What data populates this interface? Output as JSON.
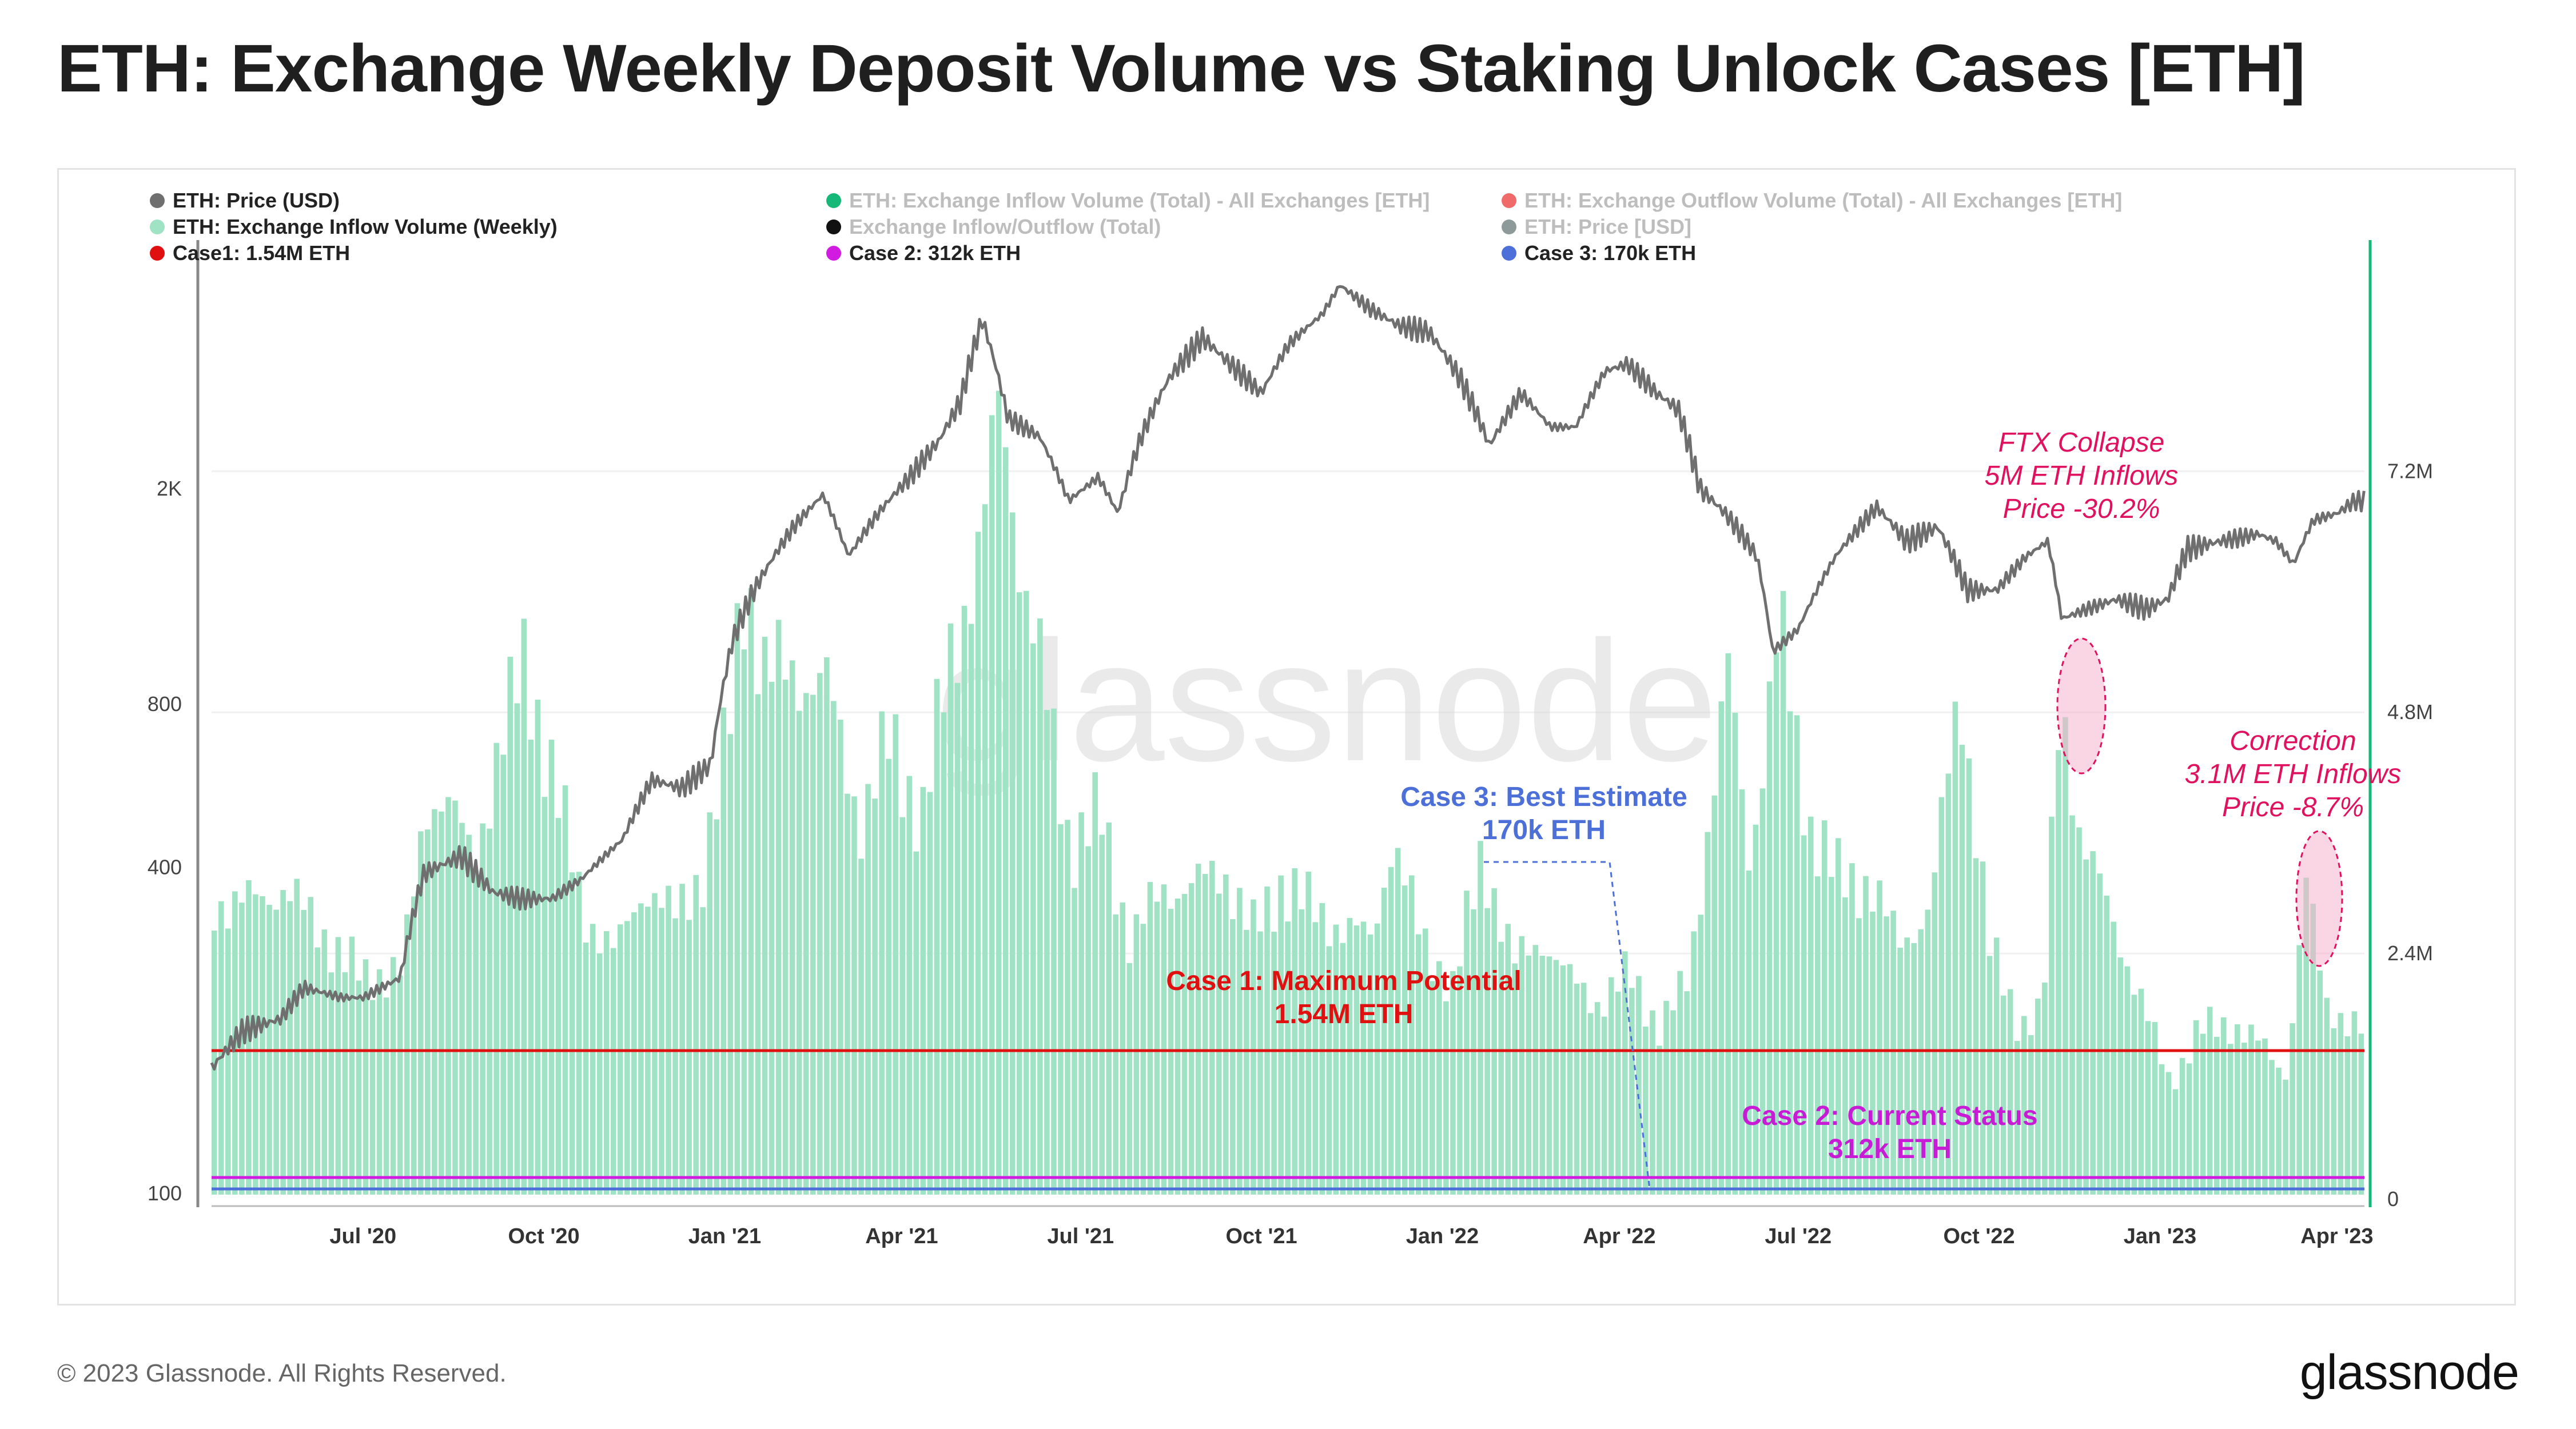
{
  "title": "ETH: Exchange Weekly Deposit Volume vs Staking Unlock Cases [ETH]",
  "footer": {
    "copyright": "© 2023 Glassnode. All Rights Reserved.",
    "logo": "glassnode"
  },
  "watermark": "glassnode",
  "legend": [
    {
      "label": "ETH: Price (USD)",
      "color": "#6f6f6f",
      "active": true
    },
    {
      "label": "ETH: Exchange Inflow Volume (Total) - All Exchanges [ETH]",
      "color": "#16b877",
      "active": false
    },
    {
      "label": "ETH: Exchange Outflow Volume (Total) - All Exchanges [ETH]",
      "color": "#f06a6a",
      "active": false
    },
    {
      "label": "ETH: Exchange Inflow Volume (Weekly)",
      "color": "#9fe2c4",
      "active": true
    },
    {
      "label": "Exchange Inflow/Outflow (Total)",
      "color": "#111111",
      "active": false
    },
    {
      "label": "ETH: Price [USD]",
      "color": "#8e9a9a",
      "active": false
    },
    {
      "label": "Case1: 1.54M ETH",
      "color": "#e01010",
      "active": true
    },
    {
      "label": "Case 2: 312k ETH",
      "color": "#d21be0",
      "active": true
    },
    {
      "label": "Case 3: 170k ETH",
      "color": "#4c6fd8",
      "active": true
    }
  ],
  "annotations": {
    "case1": {
      "line1": "Case 1: Maximum Potential",
      "line2": "1.54M ETH",
      "color": "#e01010"
    },
    "case2": {
      "line1": "Case 2: Current Status",
      "line2": "312k ETH",
      "color": "#c81bd6"
    },
    "case3": {
      "line1": "Case 3: Best Estimate",
      "line2": "170k ETH",
      "color": "#4c6fd8"
    },
    "ftx": {
      "line1": "FTX Collapse",
      "line2": "5M ETH Inflows",
      "line3": "Price -30.2%",
      "color": "#e0115f"
    },
    "correction": {
      "line1": "Correction",
      "line2": "3.1M ETH Inflows",
      "line3": "Price -8.7%",
      "color": "#e0115f"
    }
  },
  "chart_data": {
    "type": "bar+line",
    "x_ticks": [
      "Jul '20",
      "Oct '20",
      "Jan '21",
      "Apr '21",
      "Jul '21",
      "Oct '21",
      "Jan '22",
      "Apr '22",
      "Jul '22",
      "Oct '22",
      "Jan '23",
      "Apr '23"
    ],
    "left_axis": {
      "scale": "log",
      "ticks": [
        "100",
        "400",
        "800",
        "2K"
      ],
      "tick_values": [
        100,
        400,
        800,
        2000
      ]
    },
    "right_axis": {
      "scale": "linear",
      "ticks": [
        "0",
        "2.4M",
        "4.8M",
        "7.2M"
      ],
      "tick_values": [
        0,
        2400000,
        4800000,
        7200000
      ]
    },
    "x_range": [
      "2020-04-15",
      "2023-04-15"
    ],
    "grid": true,
    "inflow_weekly_eth": [
      [
        "2020-04-15",
        2900000
      ],
      [
        "2020-05-01",
        2900000
      ],
      [
        "2020-05-20",
        3050000
      ],
      [
        "2020-06-01",
        2800000
      ],
      [
        "2020-06-20",
        2350000
      ],
      [
        "2020-07-01",
        2150000
      ],
      [
        "2020-07-20",
        2250000
      ],
      [
        "2020-08-01",
        3900000
      ],
      [
        "2020-08-10",
        4000000
      ],
      [
        "2020-08-25",
        3300000
      ],
      [
        "2020-09-05",
        4300000
      ],
      [
        "2020-09-20",
        5300000
      ],
      [
        "2020-10-05",
        4100000
      ],
      [
        "2020-10-20",
        2800000
      ],
      [
        "2020-11-05",
        2400000
      ],
      [
        "2020-11-20",
        3100000
      ],
      [
        "2020-12-05",
        2750000
      ],
      [
        "2020-12-20",
        3250000
      ],
      [
        "2021-01-01",
        4500000
      ],
      [
        "2021-01-10",
        6200000
      ],
      [
        "2021-01-20",
        5200000
      ],
      [
        "2021-02-01",
        5200000
      ],
      [
        "2021-02-20",
        5100000
      ],
      [
        "2021-03-10",
        3700000
      ],
      [
        "2021-03-25",
        4550000
      ],
      [
        "2021-04-10",
        3700000
      ],
      [
        "2021-04-25",
        5450000
      ],
      [
        "2021-05-10",
        6400000
      ],
      [
        "2021-05-20",
        8050000
      ],
      [
        "2021-06-01",
        6000000
      ],
      [
        "2021-06-15",
        4650000
      ],
      [
        "2021-06-25",
        3400000
      ],
      [
        "2021-07-10",
        3800000
      ],
      [
        "2021-07-25",
        2500000
      ],
      [
        "2021-08-10",
        3050000
      ],
      [
        "2021-08-25",
        3050000
      ],
      [
        "2021-09-10",
        3250000
      ],
      [
        "2021-09-25",
        2600000
      ],
      [
        "2021-10-10",
        3100000
      ],
      [
        "2021-10-25",
        2850000
      ],
      [
        "2021-11-10",
        2650000
      ],
      [
        "2021-11-25",
        2550000
      ],
      [
        "2021-12-05",
        3550000
      ],
      [
        "2021-12-20",
        2550000
      ],
      [
        "2022-01-05",
        2050000
      ],
      [
        "2022-01-20",
        3400000
      ],
      [
        "2022-02-05",
        2300000
      ],
      [
        "2022-02-20",
        2550000
      ],
      [
        "2022-03-05",
        2150000
      ],
      [
        "2022-03-20",
        1900000
      ],
      [
        "2022-04-05",
        2200000
      ],
      [
        "2022-04-20",
        1650000
      ],
      [
        "2022-05-05",
        2150000
      ],
      [
        "2022-05-15",
        3700000
      ],
      [
        "2022-05-25",
        5200000
      ],
      [
        "2022-06-05",
        3300000
      ],
      [
        "2022-06-20",
        5700000
      ],
      [
        "2022-07-05",
        3700000
      ],
      [
        "2022-07-20",
        3150000
      ],
      [
        "2022-08-05",
        3100000
      ],
      [
        "2022-08-20",
        2500000
      ],
      [
        "2022-09-05",
        2850000
      ],
      [
        "2022-09-20",
        5100000
      ],
      [
        "2022-10-05",
        2450000
      ],
      [
        "2022-10-20",
        1700000
      ],
      [
        "2022-11-01",
        1800000
      ],
      [
        "2022-11-10",
        5000000
      ],
      [
        "2022-11-20",
        3600000
      ],
      [
        "2022-12-05",
        2800000
      ],
      [
        "2022-12-20",
        2000000
      ],
      [
        "2023-01-05",
        1100000
      ],
      [
        "2023-01-20",
        1650000
      ],
      [
        "2023-02-05",
        1700000
      ],
      [
        "2023-02-20",
        1500000
      ],
      [
        "2023-03-05",
        1200000
      ],
      [
        "2023-03-15",
        3100000
      ],
      [
        "2023-03-25",
        1900000
      ],
      [
        "2023-04-10",
        1650000
      ]
    ],
    "price_usd": [
      [
        "2020-04-15",
        170
      ],
      [
        "2020-05-01",
        200
      ],
      [
        "2020-05-20",
        210
      ],
      [
        "2020-06-01",
        240
      ],
      [
        "2020-06-20",
        230
      ],
      [
        "2020-07-01",
        230
      ],
      [
        "2020-07-20",
        250
      ],
      [
        "2020-08-01",
        390
      ],
      [
        "2020-08-20",
        420
      ],
      [
        "2020-09-05",
        360
      ],
      [
        "2020-09-20",
        350
      ],
      [
        "2020-10-05",
        350
      ],
      [
        "2020-10-20",
        380
      ],
      [
        "2020-11-10",
        450
      ],
      [
        "2020-11-25",
        580
      ],
      [
        "2020-12-10",
        560
      ],
      [
        "2020-12-25",
        620
      ],
      [
        "2021-01-05",
        1050
      ],
      [
        "2021-01-15",
        1280
      ],
      [
        "2021-02-05",
        1700
      ],
      [
        "2021-02-20",
        1950
      ],
      [
        "2021-03-05",
        1500
      ],
      [
        "2021-03-20",
        1800
      ],
      [
        "2021-04-05",
        2100
      ],
      [
        "2021-04-20",
        2450
      ],
      [
        "2021-05-01",
        2900
      ],
      [
        "2021-05-12",
        4100
      ],
      [
        "2021-05-25",
        2700
      ],
      [
        "2021-06-10",
        2500
      ],
      [
        "2021-06-25",
        1900
      ],
      [
        "2021-07-10",
        2100
      ],
      [
        "2021-07-20",
        1800
      ],
      [
        "2021-08-01",
        2500
      ],
      [
        "2021-08-15",
        3200
      ],
      [
        "2021-09-01",
        3800
      ],
      [
        "2021-09-15",
        3400
      ],
      [
        "2021-10-01",
        3000
      ],
      [
        "2021-10-15",
        3700
      ],
      [
        "2021-11-01",
        4200
      ],
      [
        "2021-11-10",
        4750
      ],
      [
        "2021-11-25",
        4300
      ],
      [
        "2021-12-10",
        4000
      ],
      [
        "2021-12-25",
        3900
      ],
      [
        "2022-01-10",
        3200
      ],
      [
        "2022-01-25",
        2400
      ],
      [
        "2022-02-10",
        3000
      ],
      [
        "2022-02-25",
        2600
      ],
      [
        "2022-03-10",
        2600
      ],
      [
        "2022-03-25",
        3300
      ],
      [
        "2022-04-05",
        3400
      ],
      [
        "2022-04-20",
        3000
      ],
      [
        "2022-05-01",
        2800
      ],
      [
        "2022-05-12",
        2000
      ],
      [
        "2022-05-25",
        1800
      ],
      [
        "2022-06-10",
        1500
      ],
      [
        "2022-06-18",
        1000
      ],
      [
        "2022-07-01",
        1100
      ],
      [
        "2022-07-20",
        1500
      ],
      [
        "2022-08-10",
        1850
      ],
      [
        "2022-08-25",
        1600
      ],
      [
        "2022-09-10",
        1700
      ],
      [
        "2022-09-25",
        1300
      ],
      [
        "2022-10-10",
        1300
      ],
      [
        "2022-10-25",
        1500
      ],
      [
        "2022-11-05",
        1600
      ],
      [
        "2022-11-12",
        1150
      ],
      [
        "2022-11-25",
        1200
      ],
      [
        "2022-12-10",
        1250
      ],
      [
        "2022-12-25",
        1200
      ],
      [
        "2023-01-05",
        1250
      ],
      [
        "2023-01-15",
        1550
      ],
      [
        "2023-02-01",
        1600
      ],
      [
        "2023-02-20",
        1650
      ],
      [
        "2023-03-01",
        1600
      ],
      [
        "2023-03-10",
        1450
      ],
      [
        "2023-03-20",
        1750
      ],
      [
        "2023-04-01",
        1800
      ],
      [
        "2023-04-10",
        1900
      ]
    ],
    "reference_lines_eth": [
      {
        "name": "Case1: 1.54M ETH",
        "value": 1540000,
        "color": "#e01010"
      },
      {
        "name": "Case 2: 312k ETH",
        "value": 312000,
        "color": "#d21be0"
      },
      {
        "name": "Case 3: 170k ETH",
        "value": 170000,
        "color": "#4c6fd8"
      }
    ]
  }
}
